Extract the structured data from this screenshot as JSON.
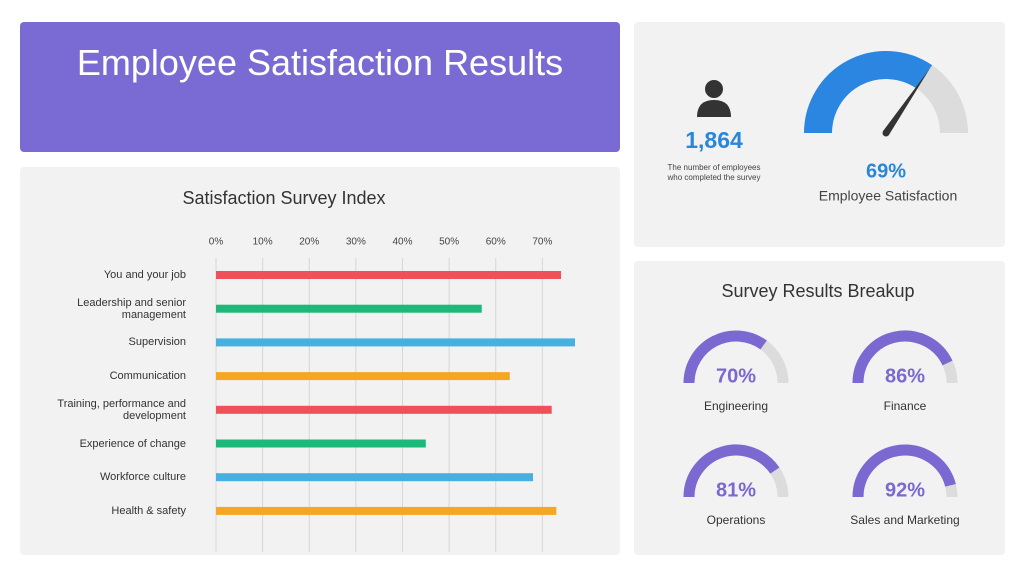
{
  "header": {
    "title": "Employee Satisfaction Results"
  },
  "stats": {
    "employees": "1,864",
    "caption": "The number of employees who completed the survey"
  },
  "chart_data": [
    {
      "type": "bar",
      "orientation": "horizontal",
      "title": "Satisfaction Survey Index",
      "categories": [
        "You and your job",
        "Leadership and senior management",
        "Supervision",
        "Communication",
        "Training, performance and development",
        "Experience of change",
        "Workforce culture",
        "Health & safety"
      ],
      "values": [
        74,
        57,
        77,
        63,
        72,
        45,
        68,
        73
      ],
      "colors": [
        "#f0505a",
        "#1db97a",
        "#46b0e0",
        "#f5a623",
        "#f0505a",
        "#1db97a",
        "#46b0e0",
        "#f5a623"
      ],
      "xlim": [
        0,
        77
      ],
      "xticks": [
        {
          "value": 0,
          "label": "0%"
        },
        {
          "value": 10,
          "label": "10%"
        },
        {
          "value": 20,
          "label": "20%"
        },
        {
          "value": 30,
          "label": "30%"
        },
        {
          "value": 40,
          "label": "40%"
        },
        {
          "value": 50,
          "label": "50%"
        },
        {
          "value": 60,
          "label": "60%"
        },
        {
          "value": 70,
          "label": "70%"
        }
      ],
      "grid": true
    },
    {
      "type": "gauge",
      "categories": [
        "Employee Satisfaction"
      ],
      "values": [
        69
      ],
      "value_labels": [
        "69%"
      ],
      "ylim": [
        0,
        100
      ],
      "color": "#2a86e0",
      "track_color": "#dcdcdc",
      "label_color": "#2a86d8",
      "needle": true
    },
    {
      "type": "gauge",
      "title": "Survey Results Breakup",
      "categories": [
        "Engineering",
        "Finance",
        "Operations",
        "Sales and Marketing"
      ],
      "values": [
        70,
        86,
        81,
        92
      ],
      "value_labels": [
        "70%",
        "86%",
        "81%",
        "92%"
      ],
      "ylim": [
        0,
        100
      ],
      "color": "#7b68d0",
      "track_color": "#dcdcdc",
      "label_color": "#7b68d0",
      "needle": false
    }
  ]
}
